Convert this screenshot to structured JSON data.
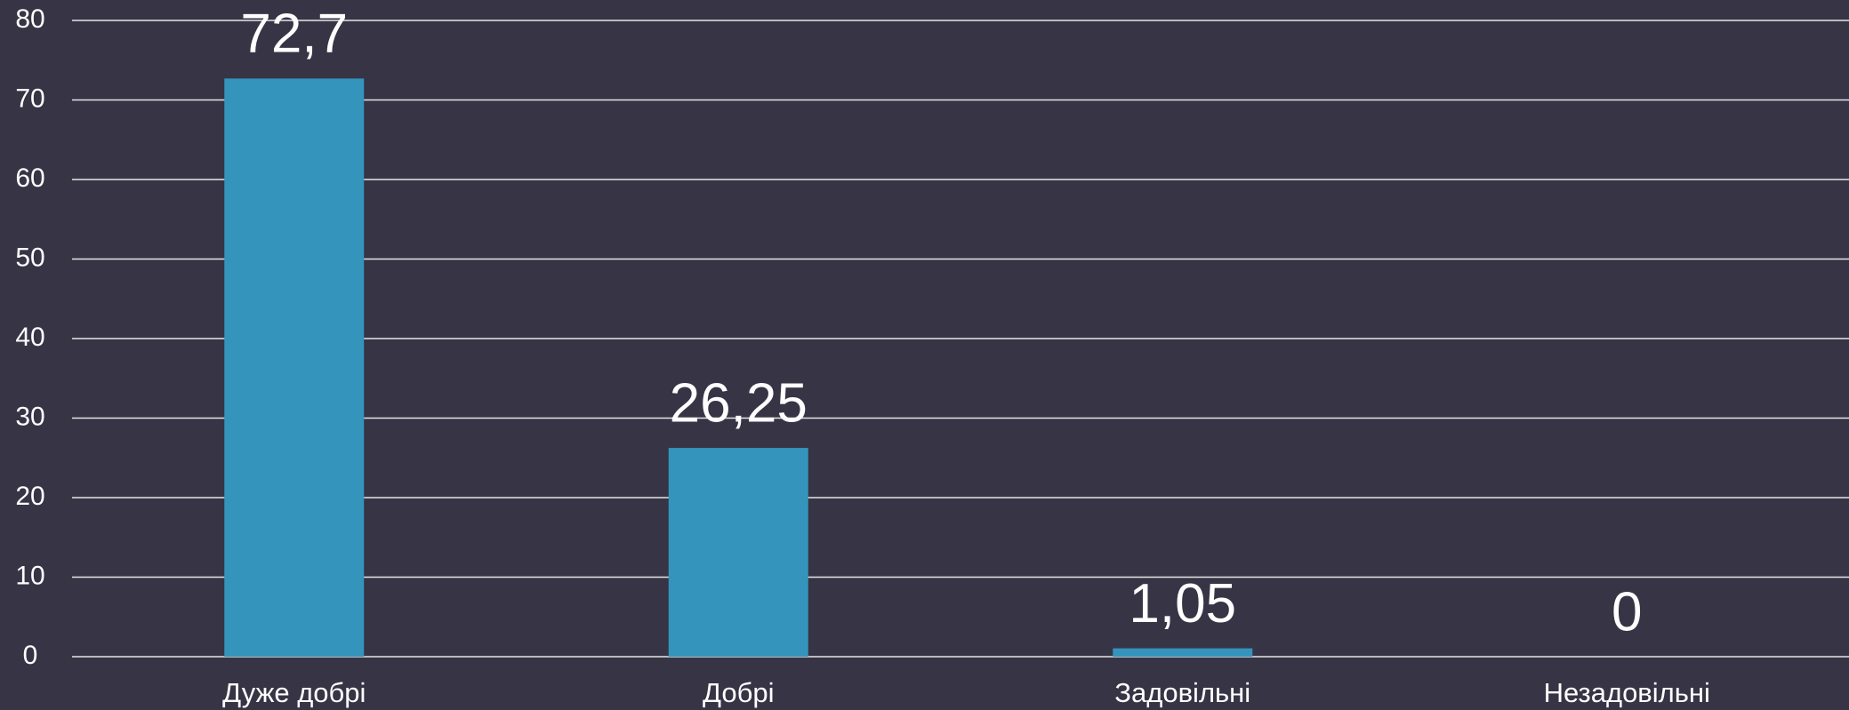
{
  "chart_data": {
    "type": "bar",
    "categories": [
      "Дуже добрі",
      "Добрі",
      "Задовільні",
      "Незадовільні"
    ],
    "values": [
      72.7,
      26.25,
      1.05,
      0
    ],
    "value_labels": [
      "72,7",
      "26,25",
      "1,05",
      "0"
    ],
    "color": "#3594bc",
    "ylim": [
      0,
      80
    ],
    "yticks": [
      0,
      10,
      20,
      30,
      40,
      50,
      60,
      70,
      80
    ],
    "grid": true
  }
}
